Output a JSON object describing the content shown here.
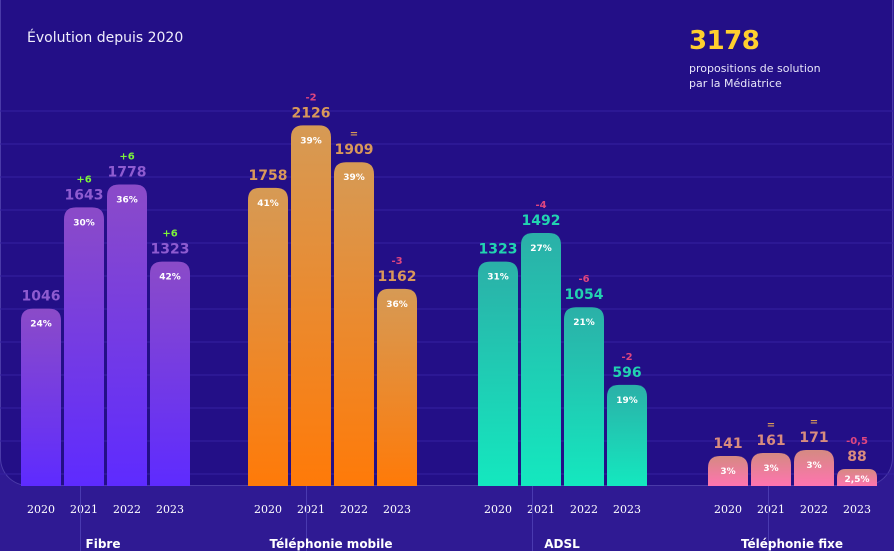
{
  "header": {
    "title": "Évolution depuis 2020",
    "kpi_value": "3178",
    "kpi_label_line1": "propositions de solution",
    "kpi_label_line2": "par la Médiatrice"
  },
  "colors": {
    "background": "#230f87",
    "kpi": "#ffcf2e",
    "change_positive": "#7cf33a",
    "change_negative": "#e0467f",
    "change_equal": "#d99a56"
  },
  "chart_data": {
    "type": "bar",
    "title": "Évolution depuis 2020",
    "xlabel": "",
    "ylabel": "",
    "ylim": [
      0,
      2500
    ],
    "grid": true,
    "legend": "none",
    "years": [
      "2020",
      "2021",
      "2022",
      "2023"
    ],
    "groups": [
      {
        "name": "Fibre",
        "color_top": "#8b4bc8",
        "color_bottom": "#5e2bff",
        "label_color": "#8e5bd0",
        "values": [
          1046,
          1643,
          1778,
          1323
        ],
        "shares": [
          "24",
          "30",
          "36",
          "42"
        ],
        "changes": [
          "",
          "+6",
          "+6",
          "+6"
        ]
      },
      {
        "name": "Téléphonie mobile",
        "color_top": "#d69a55",
        "color_bottom": "#ff7a08",
        "label_color": "#d9985a",
        "values": [
          1758,
          2126,
          1909,
          1162
        ],
        "shares": [
          "41",
          "39",
          "39",
          "36"
        ],
        "changes": [
          "",
          "-2",
          "=",
          "-3"
        ]
      },
      {
        "name": "ADSL",
        "color_top": "#2bb0a8",
        "color_bottom": "#14e8bf",
        "label_color": "#22d3b0",
        "values": [
          1323,
          1492,
          1054,
          596
        ],
        "shares": [
          "31",
          "27",
          "21",
          "19"
        ],
        "changes": [
          "",
          "-4",
          "-6",
          "-2"
        ]
      },
      {
        "name": "Téléphonie fixe",
        "color_top": "#d58a82",
        "color_bottom": "#ff74b0",
        "label_color": "#d98c7e",
        "values": [
          141,
          161,
          171,
          88
        ],
        "shares": [
          "3",
          "3",
          "3",
          "2,5"
        ],
        "changes": [
          "",
          "=",
          "=",
          "-0,5"
        ]
      }
    ],
    "percent_suffix": "%"
  }
}
